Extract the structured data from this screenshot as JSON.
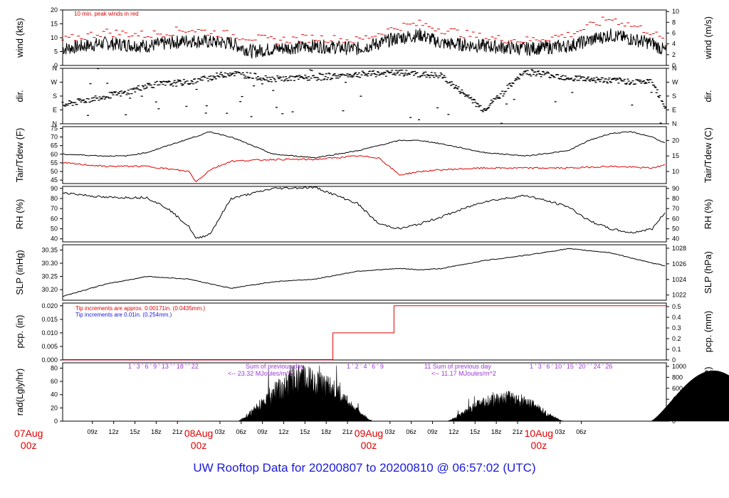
{
  "footer_title": "UW Rooftop Data for 20200807  to  20200810 @ 06:57:02  (UTC)",
  "colors": {
    "black": "#000000",
    "red": "#e00000",
    "blue": "#1a1adb",
    "purple": "#9b3ad6"
  },
  "chart_data": [
    {
      "type": "line",
      "ylabel": "wind (kts)",
      "ylabel_right": "wind (m/s)",
      "annotation": "10 min. peak winds in red",
      "ylim": [
        0,
        20
      ],
      "yticks": [
        0,
        5,
        10,
        15,
        20
      ],
      "yticks_right": [
        0,
        2,
        4,
        6,
        8,
        10
      ],
      "series": [
        {
          "color": "#000000",
          "x_hours": [
            0,
            6,
            12,
            18,
            24,
            27,
            30,
            36,
            42,
            48,
            51,
            54,
            60,
            66,
            72,
            78,
            84,
            86
          ],
          "values": [
            6,
            8,
            7,
            9,
            8,
            5,
            6,
            7,
            6,
            10,
            11,
            8,
            7,
            6,
            7,
            11,
            8,
            5
          ]
        },
        {
          "color": "#e00000",
          "x_hours": [
            0,
            6,
            12,
            18,
            24,
            30,
            36,
            42,
            48,
            51,
            54,
            60,
            66,
            72,
            78,
            84,
            86
          ],
          "values": [
            9,
            12,
            11,
            13,
            11,
            9,
            10,
            9,
            14,
            15,
            13,
            10,
            9,
            11,
            17,
            12,
            8
          ]
        }
      ]
    },
    {
      "type": "scatter",
      "ylabel": "dir.",
      "ylabel_right": "dir.",
      "yticks_labels": [
        "N",
        "E",
        "S",
        "W",
        "N"
      ],
      "x_hours": [
        0,
        6,
        9,
        12,
        18,
        24,
        30,
        36,
        42,
        48,
        54,
        60,
        66,
        72,
        78,
        84,
        86
      ],
      "values_deg": [
        120,
        180,
        200,
        250,
        270,
        330,
        290,
        300,
        320,
        330,
        310,
        90,
        340,
        300,
        280,
        270,
        90
      ]
    },
    {
      "type": "line",
      "ylabel": "Tair/Tdew (F)",
      "ylabel_right": "Tair/Tdew (C)",
      "ylim": [
        43,
        76
      ],
      "yticks": [
        45,
        50,
        55,
        60,
        65,
        70,
        75
      ],
      "yticks_right": [
        10,
        15,
        20
      ],
      "series": [
        {
          "color": "#000000",
          "x_hours": [
            0,
            6,
            9,
            12,
            15,
            18,
            21,
            24,
            30,
            36,
            42,
            48,
            51,
            54,
            60,
            66,
            72,
            75,
            78,
            81,
            84,
            86
          ],
          "values": [
            60,
            59,
            59,
            61,
            65,
            69,
            73,
            70,
            60,
            58,
            62,
            68,
            68,
            66,
            61,
            59,
            62,
            68,
            72,
            73,
            70,
            66
          ]
        },
        {
          "color": "#e00000",
          "x_hours": [
            0,
            6,
            12,
            18,
            19,
            21,
            24,
            30,
            36,
            42,
            45,
            48,
            51,
            54,
            60,
            66,
            72,
            78,
            84,
            86
          ],
          "values": [
            55,
            53,
            53,
            50,
            44,
            51,
            56,
            57,
            57,
            59,
            58,
            48,
            50,
            51,
            52,
            52,
            52,
            53,
            52,
            54
          ]
        }
      ]
    },
    {
      "type": "line",
      "ylabel": "RH (%)",
      "ylabel_right": "RH (%)",
      "ylim": [
        37,
        92
      ],
      "yticks": [
        40,
        50,
        60,
        70,
        80,
        90
      ],
      "series": [
        {
          "color": "#000000",
          "x_hours": [
            0,
            6,
            12,
            15,
            18,
            19,
            21,
            24,
            30,
            36,
            42,
            45,
            48,
            51,
            54,
            60,
            66,
            72,
            75,
            78,
            81,
            84,
            86
          ],
          "values": [
            86,
            81,
            81,
            70,
            52,
            40,
            45,
            80,
            90,
            91,
            75,
            55,
            50,
            55,
            62,
            77,
            83,
            72,
            58,
            50,
            46,
            50,
            68
          ]
        }
      ]
    },
    {
      "type": "line",
      "ylabel": "SLP (inHg)",
      "ylabel_right": "SLP (hPa)",
      "ylim": [
        30.16,
        30.37
      ],
      "yticks": [
        30.2,
        30.25,
        30.3,
        30.35
      ],
      "yticks_right": [
        1022,
        1024,
        1026,
        1028
      ],
      "series": [
        {
          "color": "#000000",
          "x_hours": [
            0,
            6,
            12,
            18,
            24,
            30,
            36,
            42,
            48,
            51,
            54,
            60,
            66,
            72,
            78,
            84,
            86
          ],
          "values": [
            30.175,
            30.22,
            30.25,
            30.24,
            30.205,
            30.23,
            30.24,
            30.27,
            30.28,
            30.275,
            30.28,
            30.31,
            30.33,
            30.355,
            30.34,
            30.3,
            30.29
          ]
        }
      ]
    },
    {
      "type": "line",
      "ylabel": "pcp. (in)",
      "ylabel_right": "pcp. (mm)",
      "annotation_red": "Tip increments are approx. 0.00171in. (0.0435mm.)",
      "annotation_blue": "Tip increments are 0.01in. (0.254mm.)",
      "ylim": [
        0,
        0.021
      ],
      "yticks": [
        0.0,
        0.005,
        0.01,
        0.015,
        0.02
      ],
      "yticks_right": [
        0,
        0.1,
        0.2,
        0.3,
        0.4,
        0.5
      ],
      "series": [
        {
          "color": "#e00000",
          "x_hours": [
            0,
            38.5,
            38.5,
            47.2,
            47.2,
            86
          ],
          "values": [
            0,
            0,
            0.01,
            0.01,
            0.02,
            0.02
          ]
        }
      ]
    },
    {
      "type": "area",
      "ylabel": "rad(Lgly/hr)",
      "ylabel_right": "rad (W/m^2)",
      "ylim": [
        0,
        88
      ],
      "yticks": [
        0,
        20,
        40,
        60,
        80
      ],
      "yticks_right": [
        0,
        200,
        400,
        600,
        800,
        1000
      ],
      "annotations": [
        {
          "hour_labels": "1  '  3  '  6  '  9  '  13  '  '  18  '  '  22",
          "text": "Sum of previous day",
          "text2": "<-- 23.32 MJoules/m^2"
        },
        {
          "hour_labels": "1  '  2  '  4  '  6  '  9",
          "text": "11   Sum of previous day",
          "text2": "<-- 11.17 MJoules/m^2"
        },
        {
          "hour_labels": "1  '  3  '  6  '  10  '  15  '  20  '  '  24  '  26",
          "text": "",
          "text2": ""
        }
      ],
      "series": [
        {
          "color": "#000000",
          "x_hours": [
            5,
            7,
            9,
            12,
            15,
            18,
            20,
            22,
            24,
            5
          ],
          "values": [
            0,
            12,
            60,
            82,
            78,
            60,
            25,
            6,
            0,
            0
          ],
          "day_peaks": [
            {
              "start": 5.5,
              "peak_hour": 13.7,
              "end": 24.6,
              "peak": 80,
              "cloudy": true
            },
            {
              "start": 35.0,
              "peak_hour": 44.0,
              "end": 51.5,
              "peak": 45,
              "cloudy": true
            },
            {
              "start": 63.8,
              "peak_hour": 72.5,
              "end": 81.5,
              "peak": 76,
              "cloudy": false
            }
          ]
        }
      ]
    }
  ],
  "x_axis": {
    "tick_labels": [
      "09z",
      "12z",
      "15z",
      "18z",
      "21z",
      "03z",
      "06z",
      "09z",
      "12z",
      "15z",
      "18z",
      "21z",
      "03z",
      "06z",
      "09z",
      "12z",
      "15z",
      "18z",
      "21z",
      "03z",
      "06z"
    ],
    "tick_hours": [
      -15,
      -12,
      -9,
      -6,
      -3,
      3,
      6,
      9,
      12,
      15,
      18,
      21,
      27,
      30,
      33,
      36,
      39,
      42,
      45,
      51,
      54
    ],
    "date_labels": [
      {
        "day": "07Aug",
        "time": "00z",
        "hour": -24
      },
      {
        "day": "08Aug",
        "time": "00z",
        "hour": 0
      },
      {
        "day": "09Aug",
        "time": "00z",
        "hour": 24
      },
      {
        "day": "10Aug",
        "time": "00z",
        "hour": 48
      }
    ]
  }
}
